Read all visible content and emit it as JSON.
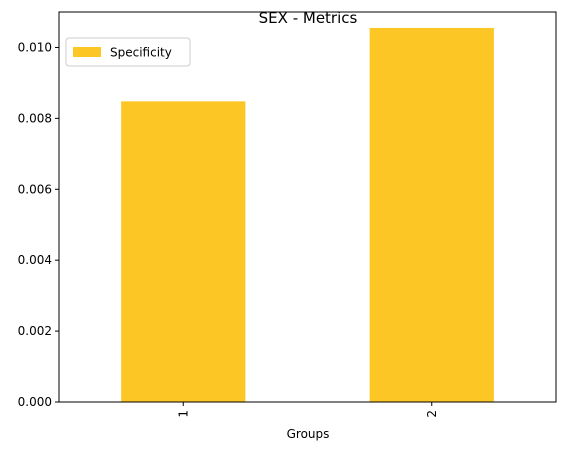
{
  "chart_data": {
    "type": "bar",
    "title": "SEX - Metrics",
    "xlabel": "Groups",
    "ylabel": "",
    "categories": [
      "1",
      "2"
    ],
    "series": [
      {
        "name": "Specificity",
        "values": [
          0.00848,
          0.01055
        ],
        "color": "#fcc624"
      }
    ],
    "ylim": [
      0,
      0.011
    ],
    "yticks": [
      "0.000",
      "0.002",
      "0.004",
      "0.006",
      "0.008",
      "0.010"
    ],
    "ytick_values": [
      0,
      0.002,
      0.004,
      0.006,
      0.008,
      0.01
    ],
    "grid": false,
    "legend_position": "top-left",
    "xtick_rotation": "vertical"
  }
}
